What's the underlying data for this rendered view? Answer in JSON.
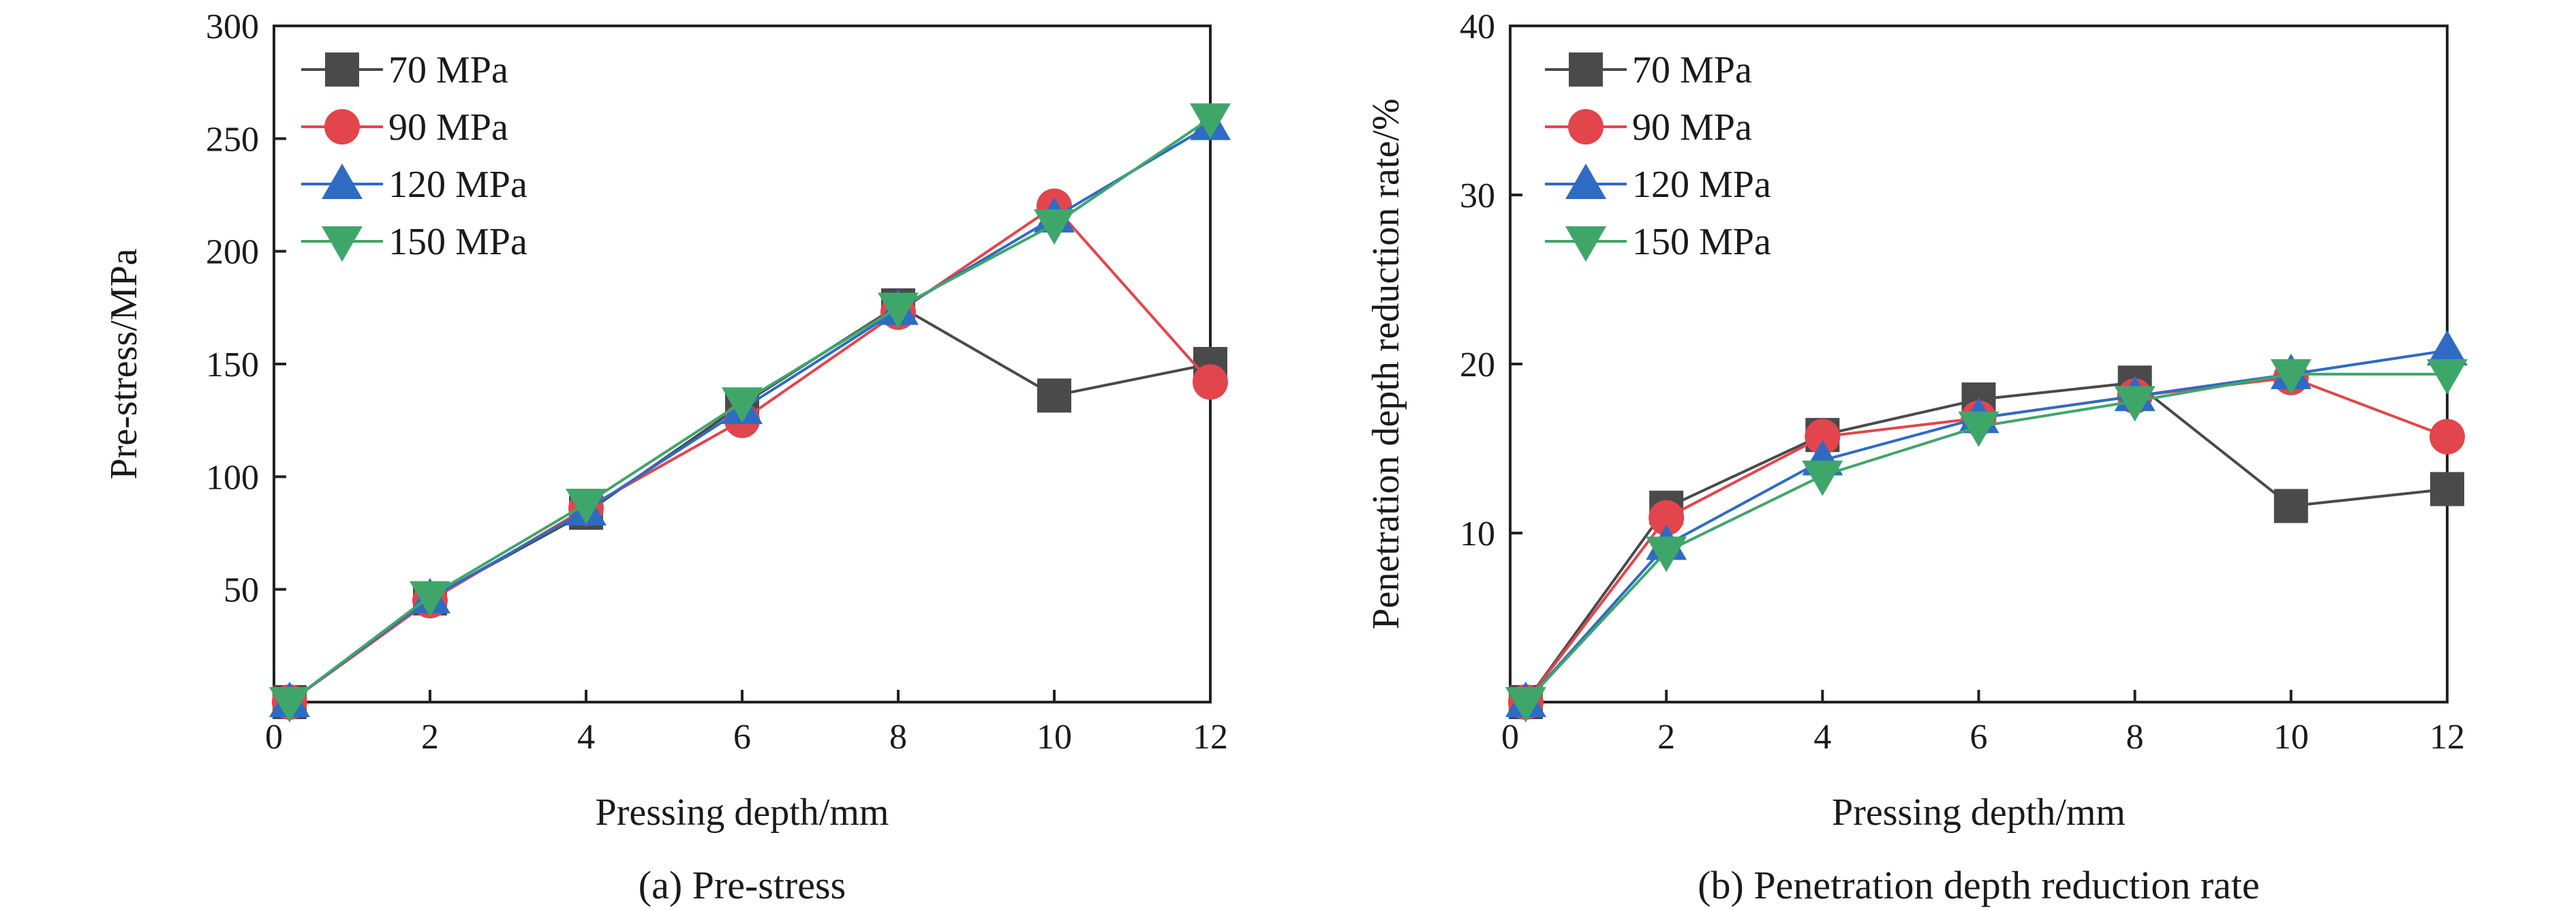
{
  "colors": {
    "70 MPa": "#4a4a4a",
    "90 MPa": "#e2454c",
    "120 MPa": "#2f6bc4",
    "150 MPa": "#3fa66a"
  },
  "markers": {
    "70 MPa": "square",
    "90 MPa": "circle",
    "120 MPa": "triangle-up",
    "150 MPa": "triangle-down"
  },
  "chart_data": [
    {
      "type": "line",
      "caption": "(a) Pre-stress",
      "xlabel": "Pressing depth/mm",
      "ylabel": "Pre-stress/MPa",
      "xlim": [
        0,
        12
      ],
      "ylim": [
        0,
        300
      ],
      "x_ticks": [
        "0",
        "2",
        "4",
        "6",
        "8",
        "10",
        "12"
      ],
      "y_ticks": [
        "50",
        "100",
        "150",
        "200",
        "250",
        "300"
      ],
      "legend_position": "top-left",
      "x": [
        0.2,
        2,
        4,
        6,
        8,
        10,
        12
      ],
      "series": [
        {
          "name": "70 MPa",
          "values": [
            0,
            46,
            84,
            132,
            176,
            136,
            150
          ]
        },
        {
          "name": "90 MPa",
          "values": [
            0,
            45,
            86,
            125,
            173,
            220,
            142
          ]
        },
        {
          "name": "120 MPa",
          "values": [
            0,
            46,
            85,
            130,
            174,
            215,
            256
          ]
        },
        {
          "name": "150 MPa",
          "values": [
            0,
            47,
            88,
            133,
            175,
            212,
            259
          ]
        }
      ]
    },
    {
      "type": "line",
      "caption": "(b) Penetration depth reduction rate",
      "xlabel": "Pressing depth/mm",
      "ylabel": "Penetration depth reduction rate/%",
      "xlim": [
        0,
        12
      ],
      "ylim": [
        0,
        40
      ],
      "x_ticks": [
        "0",
        "2",
        "4",
        "6",
        "8",
        "10",
        "12"
      ],
      "y_ticks": [
        "10",
        "20",
        "30",
        "40"
      ],
      "legend_position": "top-left",
      "x": [
        0.2,
        2,
        4,
        6,
        8,
        10,
        12
      ],
      "series": [
        {
          "name": "70 MPa",
          "values": [
            0,
            11.5,
            15.8,
            17.9,
            18.9,
            11.6,
            12.6
          ]
        },
        {
          "name": "90 MPa",
          "values": [
            0,
            10.9,
            15.7,
            16.8,
            18.1,
            19.2,
            15.7
          ]
        },
        {
          "name": "120 MPa",
          "values": [
            0,
            9.3,
            14.3,
            16.8,
            18.1,
            19.4,
            20.8
          ]
        },
        {
          "name": "150 MPa",
          "values": [
            0,
            8.9,
            13.4,
            16.3,
            17.8,
            19.4,
            19.4
          ]
        }
      ]
    }
  ]
}
